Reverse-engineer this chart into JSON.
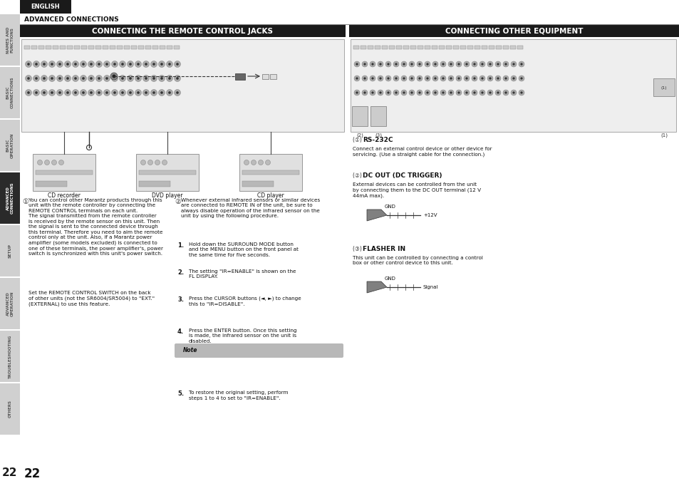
{
  "bg_color": "#ffffff",
  "sidebar_color": "#2a2a2a",
  "sidebar_tab_color": "#d0d0d0",
  "sidebar_active_color": "#2a2a2a",
  "sidebar_tabs": [
    {
      "label": "NAMES AND\nFUNCTIONS",
      "active": false
    },
    {
      "label": "BASIC\nCONNECTIONS",
      "active": false
    },
    {
      "label": "BASIC\nOPERATION",
      "active": false
    },
    {
      "label": "ADVANCED\nCONNECTIONS",
      "active": true
    },
    {
      "label": "SETUP",
      "active": false
    },
    {
      "label": "ADVANCED\nOPERATION",
      "active": false
    },
    {
      "label": "TROUBLESHOOTING",
      "active": false
    },
    {
      "label": "OTHERS",
      "active": false
    }
  ],
  "english_text": "ENGLISH",
  "adv_conn_label": "ADVANCED CONNECTIONS",
  "left_title": "CONNECTING THE REMOTE CONTROL JACKS",
  "right_title": "CONNECTING OTHER EQUIPMENT",
  "title_bg": "#1a1a1a",
  "title_color": "#ffffff",
  "page_number": "22",
  "cd_recorder": "CD recorder",
  "dvd_player": "DVD player",
  "cd_player": "CD player",
  "circle_1": "①",
  "circle_2": "②",
  "circle_3": "③",
  "text1": "You can control other Marantz products through this\nunit with the remote controller by connecting the\nREMOTE CONTROL terminals on each unit.\nThe signal transmitted from the remote controller\nis received by the remote sensor on this unit. Then\nthe signal is sent to the connected device through\nthis terminal. Therefore you need to aim the remote\ncontrol only at the unit. Also, if a Marantz power\namplifier (some models excluded) is connected to\none of these terminals, the power amplifier's, power\nswitch is synchronized with this unit's power switch.",
  "text1b": "Set the REMOTE CONTROL SWITCH on the back\nof other units (not the SR6004/SR5004) to \"EXT.\"\n(EXTERNAL) to use this feature.",
  "text2_intro": "Whenever external infrared sensors or similar devices\nare connected to REMOTE IN of the unit, be sure to\nalways disable operation of the infrared sensor on the\nunit by using the following procedure.",
  "steps_bold": [
    "SURROUND MODE",
    "MENU",
    "CURSOR",
    "ENTER"
  ],
  "step1": "Hold down the SURROUND MODE button\nand the MENU button on the front panel at\nthe same time for five seconds.",
  "step2": "The setting \"IR=ENABLE\" is shown on the\nFL DISPLAY.",
  "step3": "Press the CURSOR buttons (◄, ►) to change\nthis to \"IR=DISABLE\".",
  "step4": "Press the ENTER button. Once this setting\nis made, the infrared sensor on the unit is\ndisabled.",
  "note_text": "Note",
  "note_bg": "#b8b8b8",
  "step5": "To restore the original setting, perform\nsteps 1 to 4 to set to \"IR=ENABLE\".",
  "rs232c_title": "RS-232C",
  "rs232c_text": "Connect an external control device or other device for\nservicing. (Use a straight cable for the connection.)",
  "dc_out_title": "DC OUT (DC TRIGGER)",
  "dc_out_text": "External devices can be controlled from the unit\nby connecting them to the DC OUT terminal (12 V\n44mA max).",
  "flasher_title": "FLASHER IN",
  "flasher_text": "This unit can be controlled by connecting a control\nbox or other control device to this unit.",
  "gnd": "GND",
  "plus12v": "+12V",
  "signal": "Signal",
  "connector_color": "#808080",
  "diag_border": "#999999",
  "diag_bg": "#f5f5f5",
  "rca_outer": "#999999",
  "rca_inner": "#333333"
}
